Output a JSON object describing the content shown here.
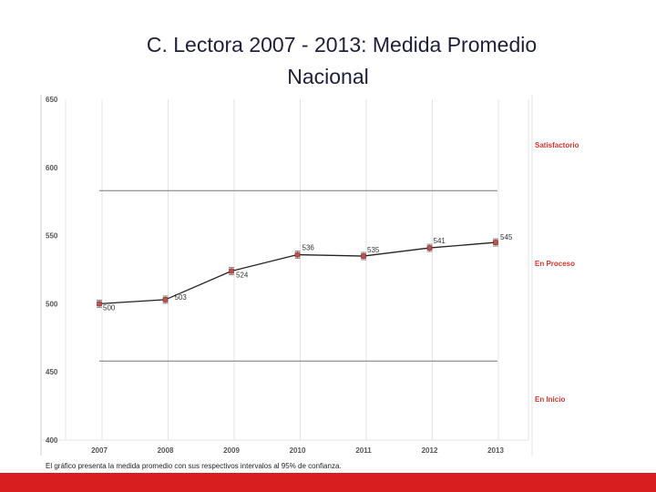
{
  "title": {
    "line1": "C. Lectora 2007 - 2013: Medida Promedio",
    "line2": "Nacional"
  },
  "chart_data": {
    "type": "line",
    "x": [
      "2007",
      "2008",
      "2009",
      "2010",
      "2011",
      "2012",
      "2013"
    ],
    "values": [
      500,
      503,
      524,
      536,
      535,
      541,
      545
    ],
    "labels": [
      "500",
      "503",
      "524",
      "536",
      "535",
      "541",
      "545"
    ],
    "error_bars": true,
    "ylim": [
      400,
      650
    ],
    "yticks": [
      "650",
      "600",
      "550",
      "500",
      "450",
      "400"
    ],
    "thresholds": [
      583,
      458
    ],
    "bands": [
      "Satisfactorio",
      "En Proceso",
      "En Inicio"
    ],
    "grid": "vertical",
    "colors": {
      "line": "#222222",
      "marker": "#c0504d",
      "band_text": "#d0362d",
      "threshold": "#777777"
    }
  },
  "note": "El gráfico presenta la medida promedio con sus respectivos intervalos al 95% de confianza.",
  "footer": {
    "color": "#d81e1e"
  }
}
